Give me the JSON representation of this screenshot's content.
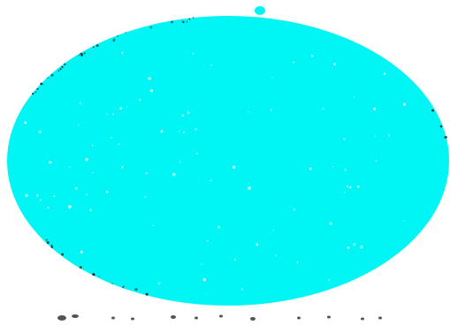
{
  "shape": {
    "kind": "ellipse",
    "fill_color": "#00F5F5",
    "edge_noise_color": "#1a1a1a"
  },
  "background_color": "#FFFFFF"
}
